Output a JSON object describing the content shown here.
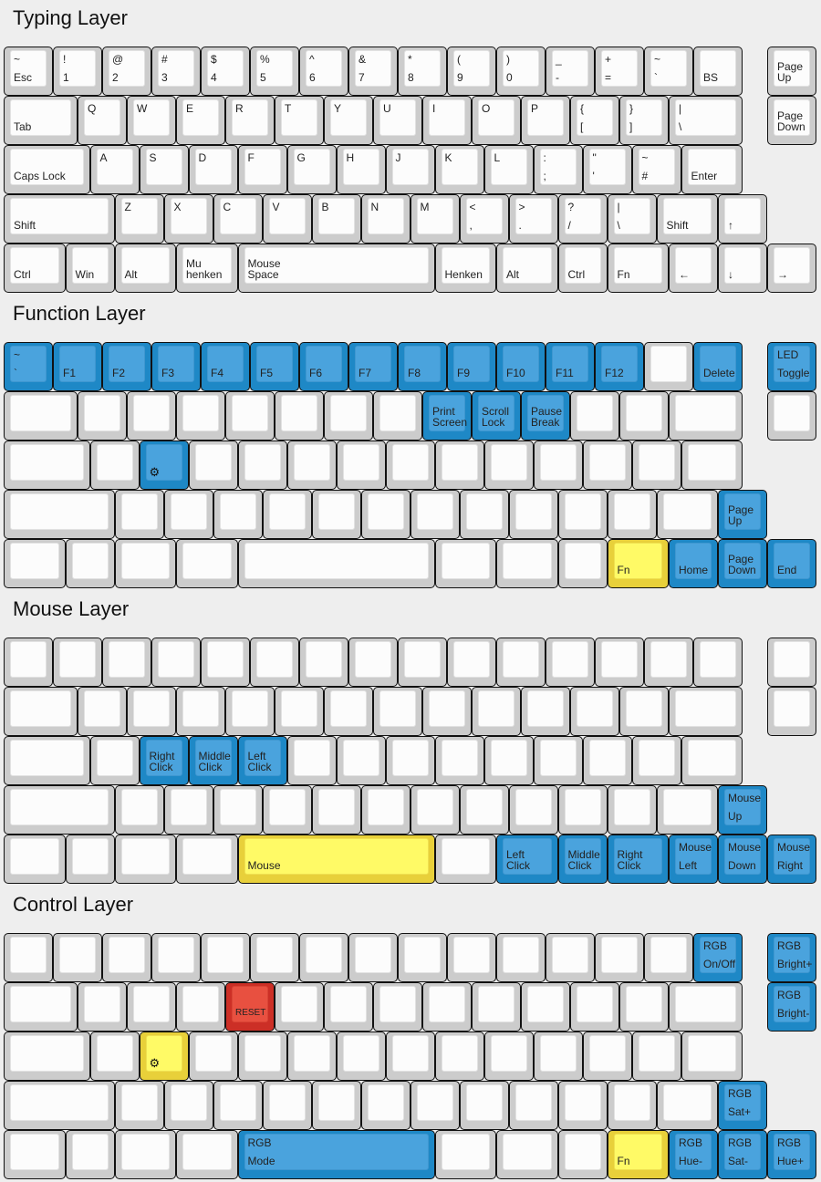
{
  "colors": {
    "background": "#eeeeee",
    "key_gray": "#cccccc",
    "key_white": "#fcfcfc",
    "blue": "#4aa3dd",
    "yellow": "#fffa66",
    "red": "#e85040"
  },
  "layers": [
    {
      "title": "Typing Layer",
      "rows": [
        {
          "keys": [
            {
              "t": "~",
              "b": "Esc"
            },
            {
              "t": "!",
              "b": "1"
            },
            {
              "t": "@",
              "b": "2"
            },
            {
              "t": "#",
              "b": "3"
            },
            {
              "t": "$",
              "b": "4"
            },
            {
              "t": "%",
              "b": "5"
            },
            {
              "t": "^",
              "b": "6"
            },
            {
              "t": "&",
              "b": "7"
            },
            {
              "t": "*",
              "b": "8"
            },
            {
              "t": "(",
              "b": "9"
            },
            {
              "t": ")",
              "b": "0"
            },
            {
              "t": "_",
              "b": "-"
            },
            {
              "t": "+",
              "b": "="
            },
            {
              "t": "~",
              "b": "`"
            },
            {
              "b": "BS"
            },
            {
              "m": "Page\nUp"
            }
          ]
        },
        {
          "keys": [
            {
              "b": "Tab"
            },
            {
              "t": "Q"
            },
            {
              "t": "W"
            },
            {
              "t": "E"
            },
            {
              "t": "R"
            },
            {
              "t": "T"
            },
            {
              "t": "Y"
            },
            {
              "t": "U"
            },
            {
              "t": "I"
            },
            {
              "t": "O"
            },
            {
              "t": "P"
            },
            {
              "t": "{",
              "b": "["
            },
            {
              "t": "}",
              "b": "]"
            },
            {
              "t": "|",
              "b": "\\"
            },
            {
              "m": "Page\nDown"
            }
          ]
        },
        {
          "keys": [
            {
              "b": "Caps Lock"
            },
            {
              "t": "A"
            },
            {
              "t": "S"
            },
            {
              "t": "D"
            },
            {
              "t": "F"
            },
            {
              "t": "G"
            },
            {
              "t": "H"
            },
            {
              "t": "J"
            },
            {
              "t": "K"
            },
            {
              "t": "L"
            },
            {
              "t": ":",
              "b": ";"
            },
            {
              "t": "\"",
              "b": "'"
            },
            {
              "t": "~",
              "b": "#"
            },
            {
              "b": "Enter"
            }
          ]
        },
        {
          "keys": [
            {
              "b": "Shift"
            },
            {
              "t": "Z"
            },
            {
              "t": "X"
            },
            {
              "t": "C"
            },
            {
              "t": "V"
            },
            {
              "t": "B"
            },
            {
              "t": "N"
            },
            {
              "t": "M"
            },
            {
              "t": "<",
              "b": ","
            },
            {
              "t": ">",
              "b": "."
            },
            {
              "t": "?",
              "b": "/"
            },
            {
              "t": "|",
              "b": "\\"
            },
            {
              "b": "Shift"
            },
            {
              "b": "↑"
            }
          ]
        },
        {
          "keys": [
            {
              "b": "Ctrl"
            },
            {
              "b": "Win"
            },
            {
              "b": "Alt"
            },
            {
              "m": "Mu\nhenken"
            },
            {
              "m": "Mouse\nSpace"
            },
            {
              "b": "Henken"
            },
            {
              "b": "Alt"
            },
            {
              "b": "Ctrl"
            },
            {
              "b": "Fn"
            },
            {
              "b": "←"
            },
            {
              "b": "↓"
            },
            {
              "b": "→"
            }
          ]
        }
      ]
    },
    {
      "title": "Function Layer",
      "rows": [
        {
          "keys": [
            {
              "t": "~",
              "b": "`",
              "c": "blue"
            },
            {
              "b": "F1",
              "c": "blue"
            },
            {
              "b": "F2",
              "c": "blue"
            },
            {
              "b": "F3",
              "c": "blue"
            },
            {
              "b": "F4",
              "c": "blue"
            },
            {
              "b": "F5",
              "c": "blue"
            },
            {
              "b": "F6",
              "c": "blue"
            },
            {
              "b": "F7",
              "c": "blue"
            },
            {
              "b": "F8",
              "c": "blue"
            },
            {
              "b": "F9",
              "c": "blue"
            },
            {
              "b": "F10",
              "c": "blue"
            },
            {
              "b": "F11",
              "c": "blue"
            },
            {
              "b": "F12",
              "c": "blue"
            },
            {},
            {
              "b": "Delete",
              "c": "blue"
            },
            {
              "t": "LED",
              "b": "Toggle",
              "c": "blue"
            }
          ]
        },
        {
          "keys": [
            {},
            {},
            {},
            {},
            {},
            {},
            {},
            {},
            {
              "m": "Print\nScreen",
              "c": "blue"
            },
            {
              "m": "Scroll\nLock",
              "c": "blue"
            },
            {
              "m": "Pause\nBreak",
              "c": "blue"
            },
            {},
            {},
            {},
            {}
          ]
        },
        {
          "keys": [
            {},
            {},
            {
              "icon": "gear",
              "c": "blue"
            },
            {},
            {},
            {},
            {},
            {},
            {},
            {},
            {},
            {},
            {},
            {}
          ]
        },
        {
          "keys": [
            {},
            {},
            {},
            {},
            {},
            {},
            {},
            {},
            {},
            {},
            {},
            {},
            {},
            {
              "m": "Page\nUp",
              "c": "blue"
            }
          ]
        },
        {
          "keys": [
            {},
            {},
            {},
            {},
            {},
            {},
            {},
            {},
            {
              "b": "Fn",
              "c": "yellow"
            },
            {
              "b": "Home",
              "c": "blue"
            },
            {
              "m": "Page\nDown",
              "c": "blue"
            },
            {
              "b": "End",
              "c": "blue"
            }
          ]
        }
      ]
    },
    {
      "title": "Mouse Layer",
      "rows": [
        {
          "keys": [
            {},
            {},
            {},
            {},
            {},
            {},
            {},
            {},
            {},
            {},
            {},
            {},
            {},
            {},
            {},
            {}
          ]
        },
        {
          "keys": [
            {},
            {},
            {},
            {},
            {},
            {},
            {},
            {},
            {},
            {},
            {},
            {},
            {},
            {},
            {}
          ]
        },
        {
          "keys": [
            {},
            {},
            {
              "m": "Right\nClick",
              "c": "blue"
            },
            {
              "m": "Middle\nClick",
              "c": "blue"
            },
            {
              "m": "Left\nClick",
              "c": "blue"
            },
            {},
            {},
            {},
            {},
            {},
            {},
            {},
            {},
            {}
          ]
        },
        {
          "keys": [
            {},
            {},
            {},
            {},
            {},
            {},
            {},
            {},
            {},
            {},
            {},
            {},
            {},
            {
              "t": "Mouse",
              "b": "Up",
              "c": "blue"
            }
          ]
        },
        {
          "keys": [
            {},
            {},
            {},
            {},
            {
              "b": "Mouse",
              "c": "yellow"
            },
            {},
            {
              "m": "Left\nClick",
              "c": "blue"
            },
            {
              "m": "Middle\nClick",
              "c": "blue"
            },
            {
              "m": "Right\nClick",
              "c": "blue"
            },
            {
              "t": "Mouse",
              "b": "Left",
              "c": "blue"
            },
            {
              "t": "Mouse",
              "b": "Down",
              "c": "blue"
            },
            {
              "t": "Mouse",
              "b": "Right",
              "c": "blue"
            }
          ]
        }
      ]
    },
    {
      "title": "Control Layer",
      "rows": [
        {
          "keys": [
            {},
            {},
            {},
            {},
            {},
            {},
            {},
            {},
            {},
            {},
            {},
            {},
            {},
            {},
            {
              "t": "RGB",
              "b": "On/Off",
              "c": "blue"
            },
            {
              "t": "RGB",
              "b": "Bright+",
              "c": "blue"
            }
          ]
        },
        {
          "keys": [
            {},
            {},
            {},
            {},
            {
              "b": "RESET",
              "c": "red"
            },
            {},
            {},
            {},
            {},
            {},
            {},
            {},
            {},
            {},
            {
              "t": "RGB",
              "b": "Bright-",
              "c": "blue"
            }
          ]
        },
        {
          "keys": [
            {},
            {},
            {
              "icon": "gear",
              "c": "yellow"
            },
            {},
            {},
            {},
            {},
            {},
            {},
            {},
            {},
            {},
            {},
            {}
          ]
        },
        {
          "keys": [
            {},
            {},
            {},
            {},
            {},
            {},
            {},
            {},
            {},
            {},
            {},
            {},
            {},
            {
              "t": "RGB",
              "b": "Sat+",
              "c": "blue"
            }
          ]
        },
        {
          "keys": [
            {},
            {},
            {},
            {},
            {
              "t": "RGB",
              "b": "Mode",
              "c": "blue"
            },
            {},
            {},
            {},
            {
              "b": "Fn",
              "c": "yellow"
            },
            {
              "t": "RGB",
              "b": "Hue-",
              "c": "blue"
            },
            {
              "t": "RGB",
              "b": "Sat-",
              "c": "blue"
            },
            {
              "t": "RGB",
              "b": "Hue+",
              "c": "blue"
            }
          ]
        }
      ]
    }
  ]
}
